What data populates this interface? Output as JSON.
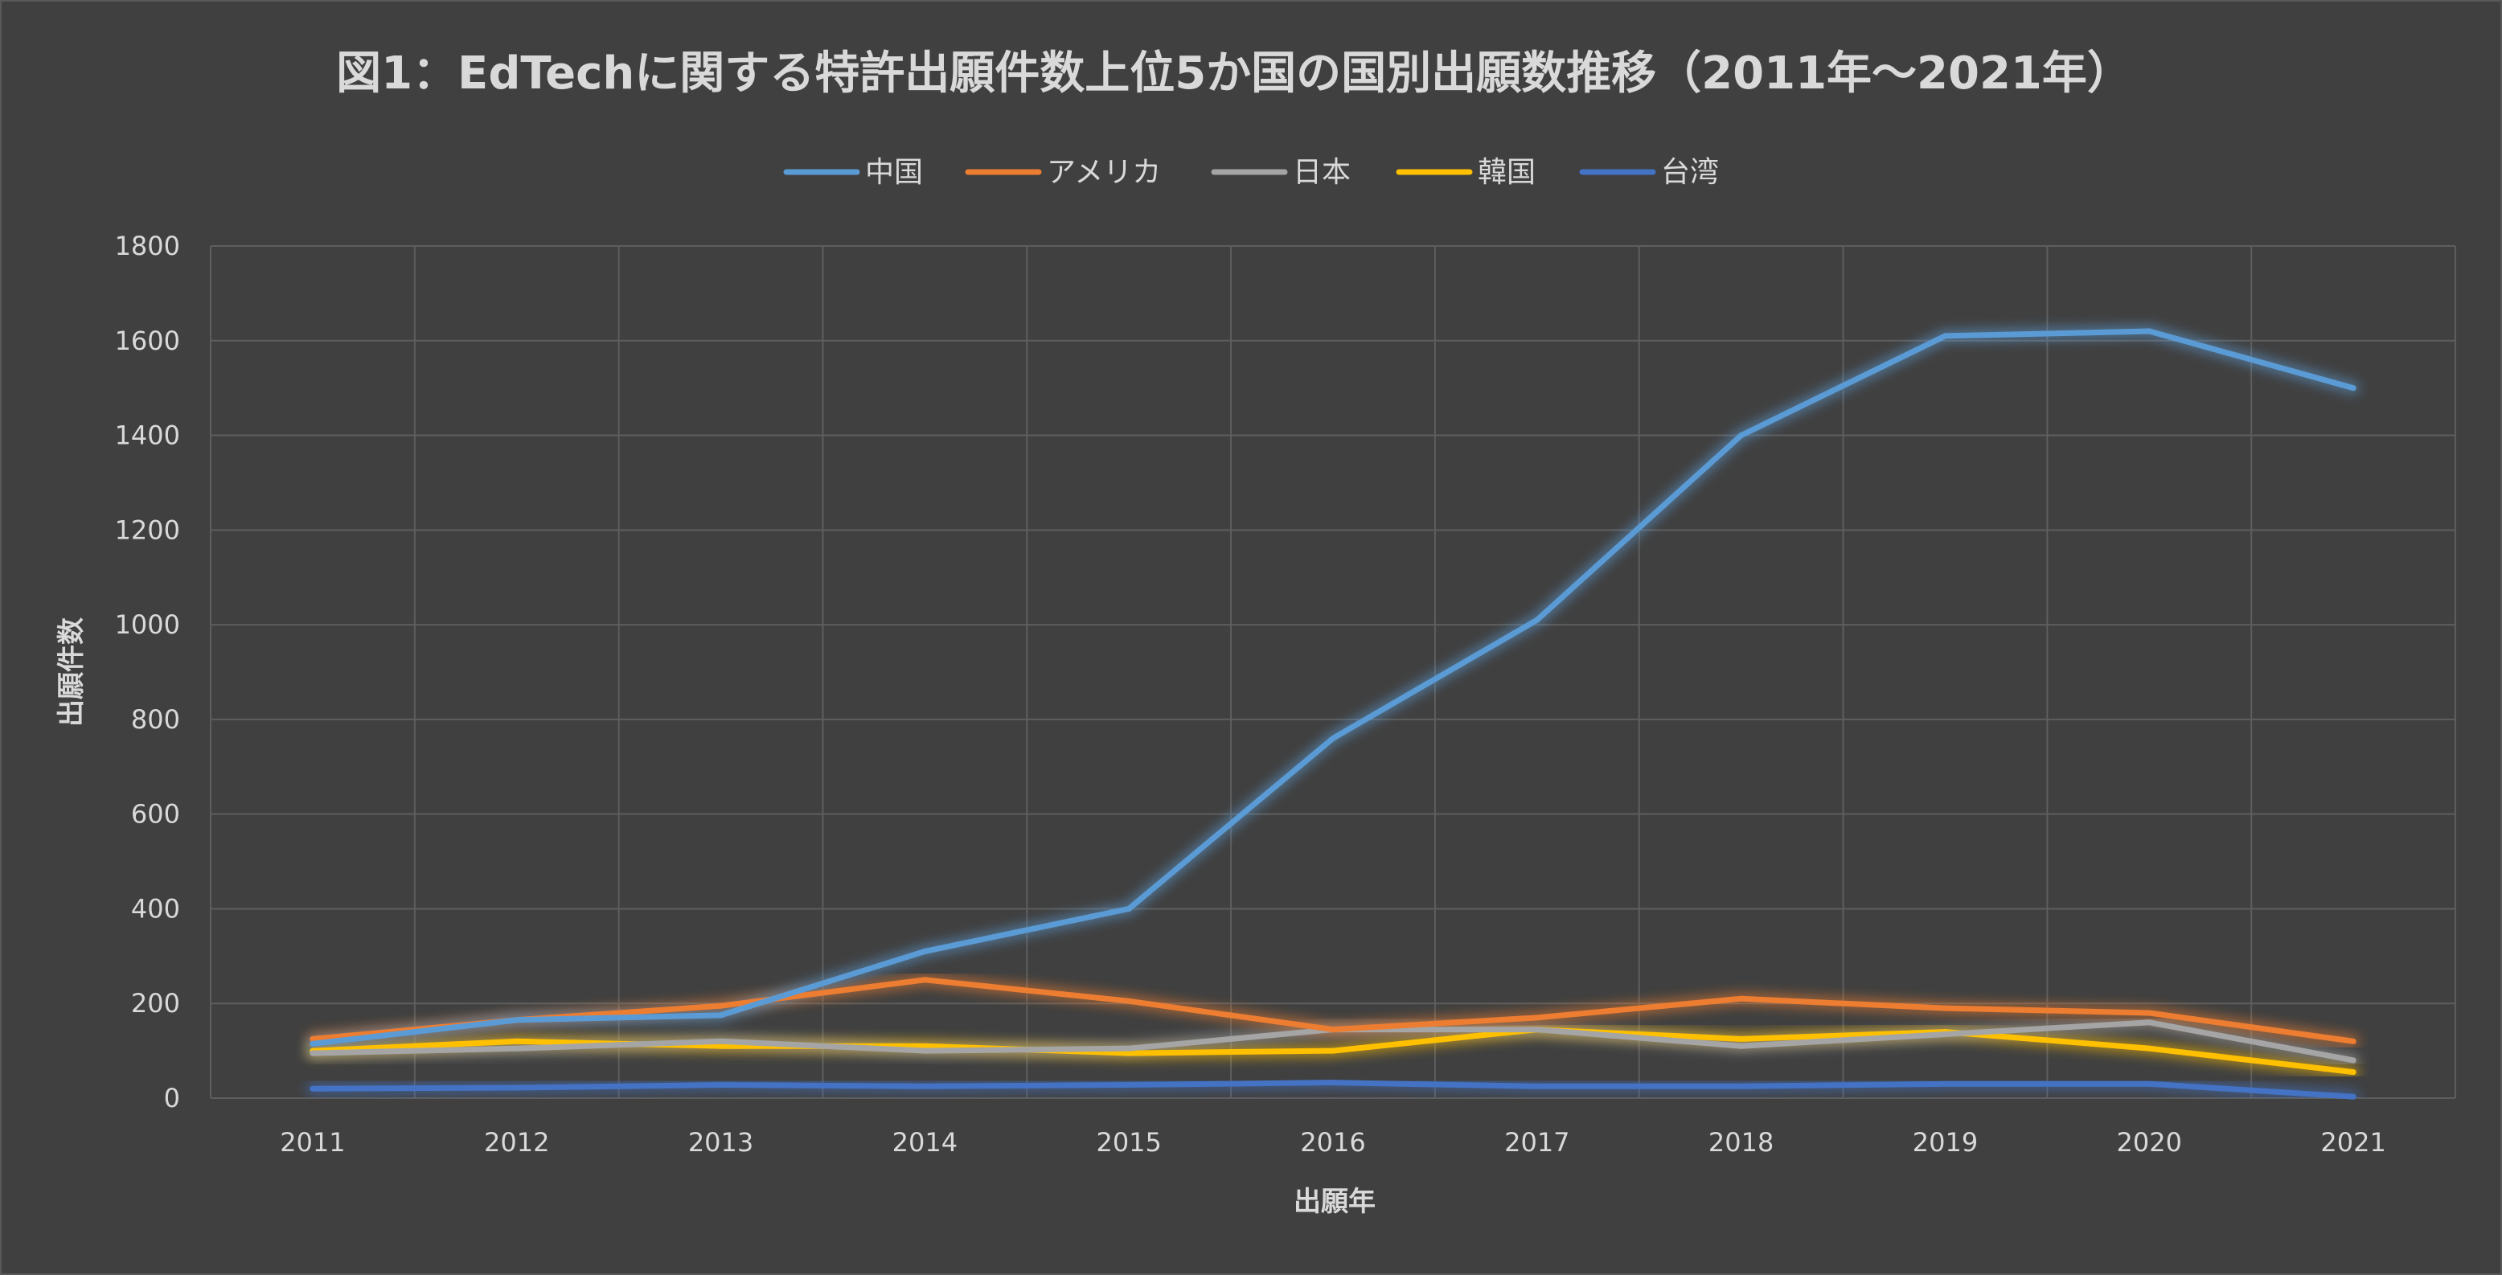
{
  "chart_data": {
    "type": "line",
    "title": "図1：EdTechに関する特許出願件数上位5か国の国別出願数推移（2011年～2021年）",
    "xlabel": "出願年",
    "ylabel": "出願件数",
    "ylim": [
      0,
      1800
    ],
    "yticks": [
      "0",
      "200",
      "400",
      "600",
      "800",
      "1000",
      "1200",
      "1400",
      "1600",
      "1800"
    ],
    "categories": [
      "2011",
      "2012",
      "2013",
      "2014",
      "2015",
      "2016",
      "2017",
      "2018",
      "2019",
      "2020",
      "2021"
    ],
    "grid": true,
    "legend_position": "top",
    "series": [
      {
        "name": "中国",
        "color": "#5B9BD5",
        "values": [
          115,
          165,
          175,
          310,
          400,
          760,
          1010,
          1400,
          1610,
          1620,
          1500
        ]
      },
      {
        "name": "アメリカ",
        "color": "#ED7D31",
        "values": [
          125,
          165,
          195,
          250,
          205,
          145,
          170,
          210,
          190,
          180,
          120
        ]
      },
      {
        "name": "日本",
        "color": "#A5A5A5",
        "values": [
          95,
          105,
          120,
          100,
          105,
          145,
          145,
          110,
          135,
          160,
          80
        ]
      },
      {
        "name": "韓国",
        "color": "#FFC000",
        "values": [
          100,
          120,
          110,
          110,
          95,
          100,
          145,
          125,
          140,
          105,
          55
        ]
      },
      {
        "name": "台湾",
        "color": "#4472C4",
        "values": [
          20,
          22,
          28,
          25,
          28,
          33,
          25,
          25,
          30,
          30,
          3
        ]
      }
    ]
  }
}
